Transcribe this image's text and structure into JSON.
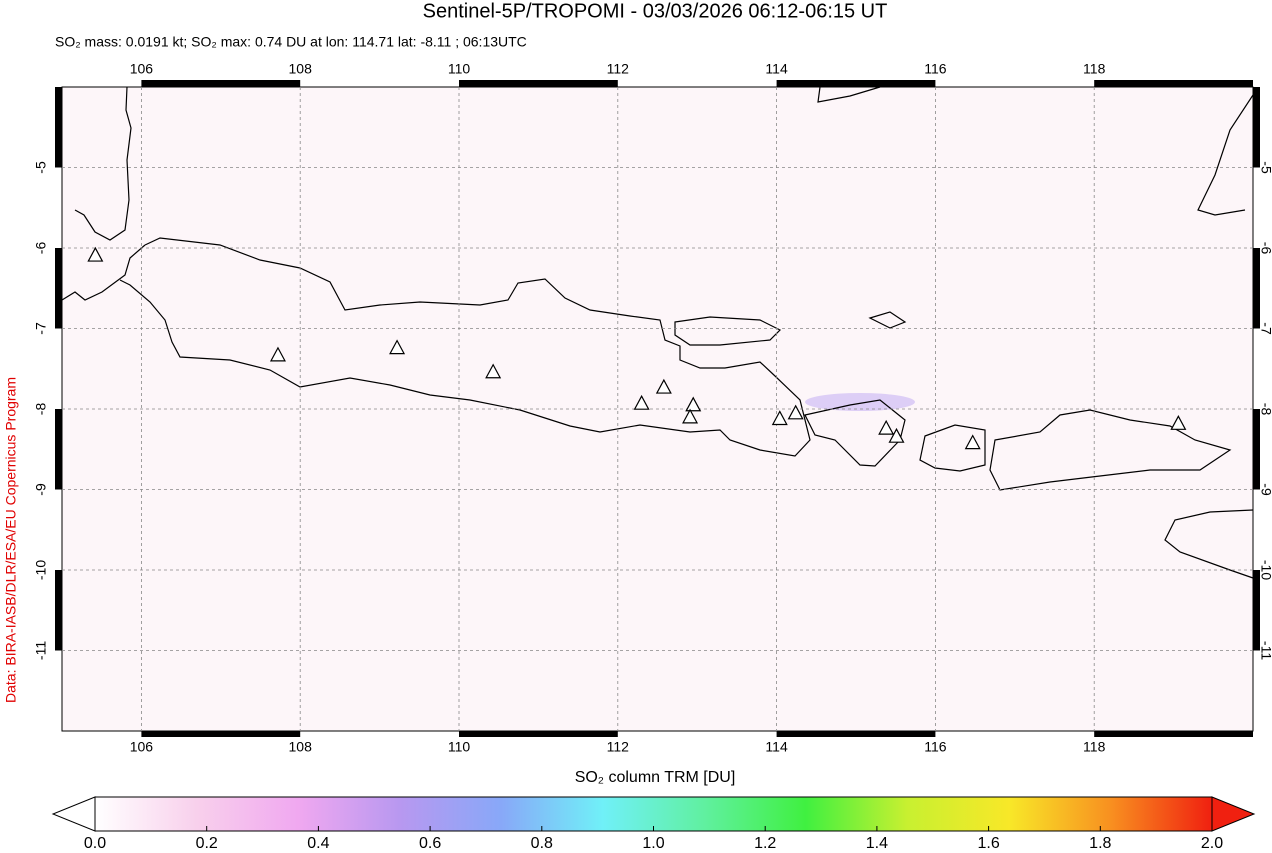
{
  "chart_data": {
    "type": "map",
    "title": "Sentinel-5P/TROPOMI - 03/03/2026 06:12-06:15 UT",
    "subtitle": "SO₂ mass: 0.0191 kt; SO₂ max: 0.74 DU at lon: 114.71 lat: -8.11 ; 06:13UTC",
    "credit": "Data: BIRA-IASB/DLR/ESA/EU Copernicus Program",
    "xlim": [
      105,
      120
    ],
    "ylim": [
      -12,
      -4
    ],
    "xticks": [
      106,
      108,
      110,
      112,
      114,
      116,
      118
    ],
    "yticks": [
      -5,
      -6,
      -7,
      -8,
      -9,
      -10,
      -11
    ],
    "grid": true,
    "volcanoes": {
      "lon": [
        105.42,
        107.72,
        109.22,
        110.43,
        112.3,
        112.58,
        112.95,
        112.91,
        114.04,
        114.24,
        115.38,
        115.51,
        116.47,
        119.06
      ],
      "lat": [
        -6.1,
        -7.34,
        -7.25,
        -7.55,
        -7.94,
        -7.74,
        -7.96,
        -8.11,
        -8.13,
        -8.06,
        -8.25,
        -8.35,
        -8.43,
        -8.19
      ]
    },
    "colorbar": {
      "label": "SO₂ column TRM [DU]",
      "lim": [
        0,
        2
      ],
      "ticks": [
        {
          "value": 0,
          "label": "0.0"
        },
        {
          "value": 0.2,
          "label": "0.2"
        },
        {
          "value": 0.4,
          "label": "0.4"
        },
        {
          "value": 0.6,
          "label": "0.6"
        },
        {
          "value": 0.8,
          "label": "0.8"
        },
        {
          "value": 1,
          "label": "1.0"
        },
        {
          "value": 1.2,
          "label": "1.2"
        },
        {
          "value": 1.4,
          "label": "1.4"
        },
        {
          "value": 1.6,
          "label": "1.6"
        },
        {
          "value": 1.8,
          "label": "1.8"
        },
        {
          "value": 2,
          "label": "2.0"
        }
      ],
      "colors": [
        "#ffffff",
        "#f8d0ec",
        "#f0a8f0",
        "#b898f0",
        "#88a8f8",
        "#70f0f8",
        "#60f0a0",
        "#40f040",
        "#c8f030",
        "#f8e828",
        "#f89020",
        "#f02010"
      ]
    }
  }
}
